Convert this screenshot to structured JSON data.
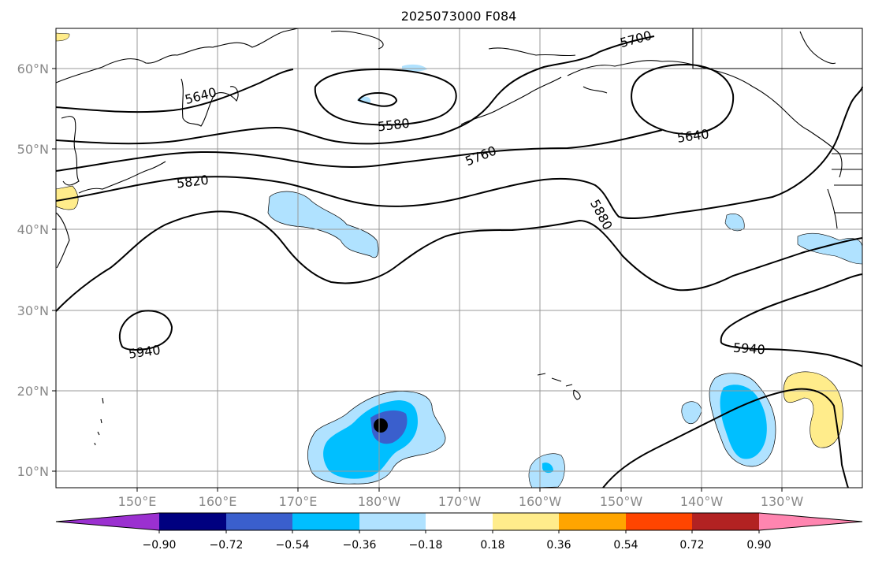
{
  "map": {
    "title": "2025073000 F084",
    "lon_labels": [
      "150°E",
      "160°E",
      "170°E",
      "180°W",
      "170°W",
      "160°W",
      "150°W",
      "140°W",
      "130°W"
    ],
    "lat_labels": [
      "60°N",
      "50°N",
      "40°N",
      "30°N",
      "20°N",
      "10°N"
    ],
    "contour_labels": [
      "5700",
      "5640",
      "5580",
      "5640",
      "5760",
      "5820",
      "5880",
      "5940",
      "5940"
    ],
    "colorbar": {
      "ticks": [
        "−0.90",
        "−0.72",
        "−0.54",
        "−0.36",
        "−0.18",
        "0.18",
        "0.36",
        "0.54",
        "0.72",
        "0.90"
      ],
      "colors": [
        "#9b30d0",
        "#000080",
        "#3a5fcd",
        "#00bfff",
        "#b0e2ff",
        "#ffffff",
        "#ffec8b",
        "#ffa500",
        "#ff4500",
        "#b22222",
        "#ff85b0"
      ]
    },
    "colors": {
      "marker": "#000000",
      "grid": "#999999"
    }
  }
}
